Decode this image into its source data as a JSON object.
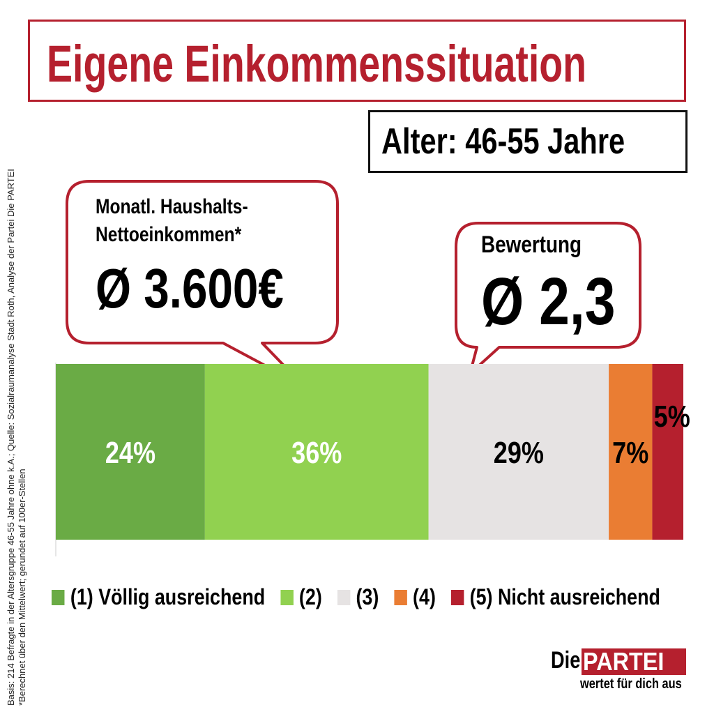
{
  "header": {
    "title": "Eigene Einkommenssituation",
    "subtitle": "Alter: 46-55 Jahre"
  },
  "bubbles": {
    "income_label_line1": "Monatl. Haushalts-",
    "income_label_line2": "Nettoeinkommen*",
    "income_value": "Ø 3.600€",
    "rating_label": "Bewertung",
    "rating_value": "Ø 2,3"
  },
  "chart_data": {
    "type": "bar",
    "orientation": "horizontal-stacked",
    "categories": [
      "(1) Völlig ausreichend",
      "(2)",
      "(3)",
      "(4)",
      "(5) Nicht ausreichend"
    ],
    "values": [
      24,
      36,
      29,
      7,
      5
    ],
    "labels": [
      "24%",
      "36%",
      "29%",
      "7%",
      "5%"
    ],
    "colors": [
      "#6aab45",
      "#91d150",
      "#e6e3e3",
      "#ea7d33",
      "#b5202e"
    ],
    "label_colors": [
      "#ffffff",
      "#ffffff",
      "#000000",
      "#000000",
      "#000000"
    ],
    "legend_position": "bottom"
  },
  "source_note": {
    "line1": "Basis: 214 Befragte in der Altersgruppe 46-55 Jahre ohne k.A.; Quelle: Sozialraumanalyse Stadt Roth, Analyse der Partei Die PARTEI",
    "line2": "*Berechnet über den Mittelwert; gerundet auf 100er-Stellen"
  },
  "logo": {
    "prefix": "Die",
    "name": "PARTEI",
    "slogan": "wertet für dich aus"
  },
  "colors": {
    "accent": "#b5202e"
  }
}
